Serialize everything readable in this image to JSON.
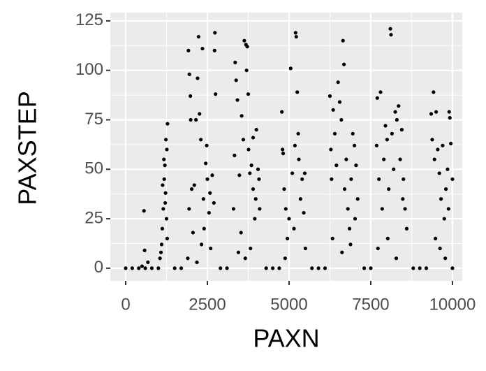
{
  "chart_data": {
    "type": "scatter",
    "x_label": "PAXN",
    "y_label": "PAXSTEP",
    "color": "#000000",
    "grid": true,
    "minor_grid": true,
    "background": "#ebebeb",
    "xlim": [
      -470,
      10300
    ],
    "ylim": [
      -6.4,
      129.2
    ],
    "xticks": [
      0,
      2500,
      5000,
      7500,
      10000
    ],
    "yticks": [
      0,
      25,
      50,
      75,
      100,
      125
    ],
    "x": [
      0,
      200,
      400,
      600,
      800,
      1000,
      1500,
      1700,
      2900,
      3100,
      4300,
      4500,
      4700,
      5700,
      5900,
      6100,
      7300,
      7500,
      8800,
      9000,
      9200,
      10000,
      560,
      580,
      680,
      500,
      1050,
      1100,
      1120,
      1150,
      1180,
      1200,
      1220,
      1250,
      1260,
      1280,
      1230,
      1170,
      1130,
      1080,
      1270,
      1210,
      1920,
      1950,
      1980,
      1990,
      2020,
      1940,
      1900,
      2100,
      2150,
      2200,
      2230,
      2260,
      2300,
      2350,
      2380,
      2400,
      2450,
      2500,
      2550,
      2600,
      2650,
      2700,
      2730,
      2750,
      2720,
      2480,
      2320,
      2180,
      2060,
      2580,
      3300,
      3330,
      3350,
      3380,
      3420,
      3480,
      3550,
      3600,
      3630,
      3680,
      3700,
      3720,
      3750,
      3800,
      3850,
      3900,
      3950,
      4000,
      4050,
      4100,
      3450,
      3530,
      3760,
      3820,
      3980,
      4080,
      3660,
      3900,
      4780,
      4800,
      4820,
      4850,
      4900,
      4950,
      5000,
      5050,
      5100,
      5150,
      5200,
      5220,
      5250,
      5280,
      5300,
      5350,
      5400,
      5450,
      5480,
      5500,
      4880,
      5180,
      6250,
      6280,
      6300,
      6350,
      6400,
      6450,
      6500,
      6550,
      6600,
      6650,
      6680,
      6700,
      6750,
      6800,
      6850,
      6900,
      6950,
      7000,
      7050,
      7100,
      6330,
      6620,
      6880,
      7020,
      7680,
      7700,
      7750,
      7800,
      7850,
      7900,
      7950,
      8000,
      8050,
      8100,
      8120,
      8150,
      8200,
      8250,
      8300,
      8350,
      8400,
      8450,
      8500,
      8550,
      8600,
      7720,
      8020,
      8280,
      8480,
      9350,
      9380,
      9420,
      9450,
      9500,
      9550,
      9600,
      9650,
      9700,
      9750,
      9800,
      9850,
      9900,
      9920,
      9950,
      10000,
      9480,
      9620,
      9780,
      9880
    ],
    "y": [
      0,
      0,
      0,
      0,
      0,
      0,
      0,
      0,
      0,
      0,
      0,
      0,
      0,
      0,
      0,
      0,
      0,
      0,
      0,
      0,
      0,
      0,
      29,
      9,
      3,
      1,
      5,
      12,
      20,
      30,
      45,
      52,
      38,
      25,
      60,
      73,
      65,
      55,
      42,
      8,
      15,
      33,
      110,
      98,
      87,
      75,
      40,
      30,
      5,
      42,
      75,
      96,
      117,
      78,
      65,
      111,
      35,
      20,
      53,
      45,
      28,
      10,
      47,
      33,
      119,
      88,
      110,
      62,
      12,
      3,
      18,
      38,
      30,
      57,
      104,
      95,
      85,
      47,
      77,
      65,
      115,
      113,
      100,
      112,
      88,
      48,
      52,
      40,
      25,
      70,
      50,
      30,
      8,
      18,
      60,
      10,
      35,
      45,
      5,
      66,
      79,
      60,
      58,
      40,
      30,
      15,
      25,
      101,
      48,
      20,
      119,
      117,
      89,
      68,
      55,
      35,
      45,
      28,
      48,
      10,
      5,
      62,
      87,
      60,
      45,
      80,
      68,
      52,
      94,
      84,
      75,
      115,
      103,
      40,
      55,
      30,
      20,
      45,
      68,
      62,
      52,
      35,
      15,
      8,
      12,
      25,
      62,
      86,
      45,
      89,
      30,
      55,
      72,
      65,
      40,
      121,
      118,
      68,
      50,
      79,
      75,
      82,
      55,
      70,
      45,
      30,
      20,
      10,
      15,
      5,
      35,
      78,
      65,
      89,
      55,
      79,
      60,
      48,
      35,
      62,
      25,
      40,
      50,
      79,
      76,
      63,
      45,
      15,
      10,
      5,
      30
    ]
  }
}
